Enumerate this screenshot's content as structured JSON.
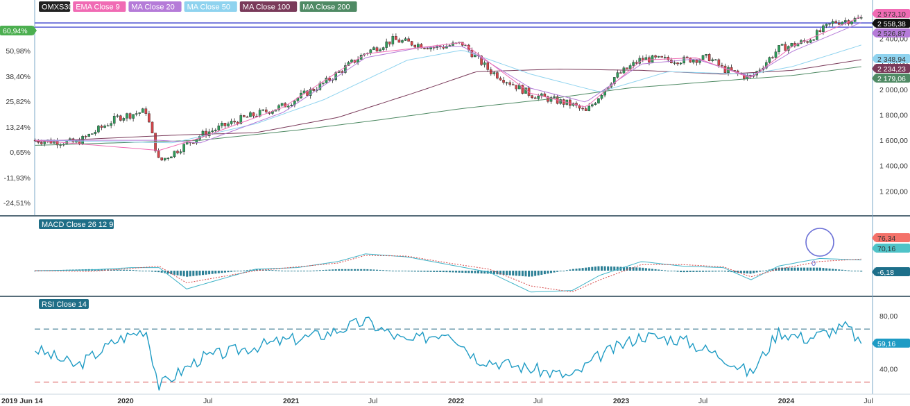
{
  "chart_data": [
    {
      "type": "line",
      "panel": "price",
      "title": "OMXS30",
      "legend": [
        {
          "name": "OMXS30",
          "color": "#333333"
        },
        {
          "name": "EMA Close 9",
          "color": "#f06bb4"
        },
        {
          "name": "MA Close 20",
          "color": "#b57bd8"
        },
        {
          "name": "MA Close 50",
          "color": "#8fd3ef"
        },
        {
          "name": "MA Close 100",
          "color": "#7a3a5a"
        },
        {
          "name": "MA Close 200",
          "color": "#4f8a64"
        }
      ],
      "legend_placement": "top-left",
      "x_ticks": [
        "2019 Jun 14",
        "2020",
        "Jul",
        "2021",
        "Jul",
        "2022",
        "Jul",
        "2023",
        "Jul",
        "2024",
        "Jul"
      ],
      "x_range": [
        "2019-06-14",
        "2024-07-10"
      ],
      "y_right_ticks": [
        "2 400,00",
        "2 200,00",
        "2 000,00",
        "1 800,00",
        "1 600,00",
        "1 400,00",
        "1 200,00"
      ],
      "y_right_range": [
        1120,
        2660
      ],
      "y_left_ticks": [
        "60,94%",
        "50,98%",
        "38,40%",
        "25,82%",
        "13,24%",
        "0,65%",
        "-11,93%",
        "-24,51%"
      ],
      "right_tags": [
        {
          "text": "2 573,10",
          "bg": "#f06bb4",
          "fg": "#333333"
        },
        {
          "text": "2 558,38",
          "bg": "#111111",
          "fg": "#ffffff"
        },
        {
          "text": "2 526,87",
          "bg": "#b57bd8",
          "fg": "#333333"
        },
        {
          "text": "2 348,94",
          "bg": "#8fd3ef",
          "fg": "#333333"
        },
        {
          "text": "2 234,23",
          "bg": "#7a3a5a",
          "fg": "#ffffff"
        },
        {
          "text": "2 179,06",
          "bg": "#4f8a64",
          "fg": "#ffffff"
        }
      ],
      "left_tag": {
        "text": "60,94%",
        "bg": "#4caf50",
        "fg": "#ffffff"
      },
      "horizontal_lines": [
        2523,
        2490
      ],
      "series": [
        {
          "name": "OMXS30",
          "x": [
            "2019-06",
            "2019-09",
            "2019-12",
            "2020-02",
            "2020-03",
            "2020-06",
            "2020-09",
            "2020-12",
            "2021-03",
            "2021-06",
            "2021-08",
            "2021-11",
            "2022-01",
            "2022-03",
            "2022-06",
            "2022-09",
            "2022-10",
            "2022-12",
            "2023-02",
            "2023-05",
            "2023-07",
            "2023-08",
            "2023-10",
            "2023-12",
            "2024-02",
            "2024-04",
            "2024-06"
          ],
          "values": [
            1600,
            1580,
            1780,
            1830,
            1430,
            1640,
            1770,
            1870,
            2050,
            2290,
            2390,
            2330,
            2360,
            2150,
            1960,
            1880,
            1820,
            2090,
            2240,
            2230,
            2250,
            2160,
            2090,
            2320,
            2380,
            2530,
            2558
          ]
        },
        {
          "name": "MA Close 200",
          "x": [
            "2019-06",
            "2020-06",
            "2021-01",
            "2021-07",
            "2022-01",
            "2022-07",
            "2023-01",
            "2023-07",
            "2024-01",
            "2024-06"
          ],
          "values": [
            1560,
            1600,
            1680,
            1760,
            1850,
            1920,
            2010,
            2060,
            2110,
            2179
          ]
        },
        {
          "name": "MA Close 100",
          "x": [
            "2019-06",
            "2020-04",
            "2020-10",
            "2021-04",
            "2021-10",
            "2022-02",
            "2022-08",
            "2023-02",
            "2023-08",
            "2024-01",
            "2024-06"
          ],
          "values": [
            1590,
            1640,
            1660,
            1780,
            1990,
            2140,
            2160,
            2150,
            2120,
            2150,
            2234
          ]
        },
        {
          "name": "MA Close 50",
          "x": [
            "2019-06",
            "2020-04",
            "2020-10",
            "2021-03",
            "2021-09",
            "2022-01",
            "2022-06",
            "2022-11",
            "2023-04",
            "2023-10",
            "2024-01",
            "2024-06"
          ],
          "values": [
            1600,
            1580,
            1730,
            1920,
            2230,
            2310,
            2120,
            1980,
            2140,
            2120,
            2180,
            2349
          ]
        },
        {
          "name": "MA Close 20",
          "x": [
            "2019-06",
            "2020-03",
            "2020-06",
            "2020-12",
            "2021-06",
            "2021-10",
            "2022-01",
            "2022-06",
            "2022-10",
            "2023-02",
            "2023-06",
            "2023-10",
            "2024-01",
            "2024-06"
          ],
          "values": [
            1600,
            1600,
            1580,
            1820,
            2250,
            2330,
            2340,
            2010,
            1900,
            2200,
            2240,
            2100,
            2300,
            2527
          ]
        },
        {
          "name": "EMA Close 9",
          "x": [
            "2019-06",
            "2020-03",
            "2020-06",
            "2020-12",
            "2021-06",
            "2021-10",
            "2022-01",
            "2022-06",
            "2022-10",
            "2023-02",
            "2023-06",
            "2023-10",
            "2024-01",
            "2024-06"
          ],
          "values": [
            1600,
            1520,
            1620,
            1860,
            2280,
            2330,
            2370,
            1970,
            1860,
            2230,
            2250,
            2090,
            2340,
            2573
          ]
        }
      ]
    },
    {
      "type": "bar",
      "panel": "macd",
      "title": "MACD Close 26 12 9",
      "right_tags": [
        {
          "text": "76,34",
          "bg": "#f4726a",
          "fg": "#333333"
        },
        {
          "text": "70,16",
          "bg": "#4fc3c8",
          "fg": "#333333"
        },
        {
          "text": "-6,18",
          "bg": "#1d6f8a",
          "fg": "#ffffff"
        }
      ],
      "annotation": "0",
      "x": [
        "2019-06",
        "2019-10",
        "2020-01",
        "2020-03",
        "2020-05",
        "2020-10",
        "2021-01",
        "2021-04",
        "2021-06",
        "2021-09",
        "2021-12",
        "2022-03",
        "2022-06",
        "2022-09",
        "2022-11",
        "2023-02",
        "2023-05",
        "2023-08",
        "2023-10",
        "2023-12",
        "2024-03",
        "2024-06"
      ],
      "macd": [
        0,
        5,
        20,
        20,
        -120,
        10,
        20,
        60,
        110,
        90,
        40,
        -10,
        -140,
        -130,
        -30,
        60,
        30,
        20,
        -60,
        30,
        80,
        70
      ],
      "signal": [
        0,
        -5,
        15,
        30,
        -80,
        0,
        25,
        50,
        100,
        95,
        50,
        10,
        -100,
        -140,
        -60,
        40,
        40,
        25,
        -40,
        10,
        60,
        76
      ],
      "histogram": [
        0,
        10,
        5,
        -10,
        -40,
        10,
        -5,
        10,
        10,
        -5,
        -10,
        -20,
        -40,
        10,
        30,
        20,
        -10,
        -5,
        -20,
        20,
        20,
        -6
      ]
    },
    {
      "type": "line",
      "panel": "rsi",
      "title": "RSI Close 14",
      "y_right_ticks": [
        "80,00",
        "40,00"
      ],
      "y_range": [
        25,
        90
      ],
      "levels": [
        70,
        30
      ],
      "right_tag": {
        "text": "59,16",
        "bg": "#1e9bc4",
        "fg": "#ffffff"
      },
      "x": [
        "2019-06",
        "2019-09",
        "2019-12",
        "2020-02",
        "2020-03",
        "2020-06",
        "2020-10",
        "2020-12",
        "2021-03",
        "2021-06",
        "2021-09",
        "2021-12",
        "2022-02",
        "2022-06",
        "2022-09",
        "2022-11",
        "2023-02",
        "2023-05",
        "2023-08",
        "2023-10",
        "2023-12",
        "2024-02",
        "2024-05",
        "2024-06"
      ],
      "values": [
        55,
        42,
        62,
        70,
        27,
        48,
        57,
        61,
        66,
        76,
        60,
        69,
        48,
        40,
        34,
        50,
        65,
        62,
        49,
        36,
        68,
        63,
        72,
        59
      ]
    }
  ]
}
